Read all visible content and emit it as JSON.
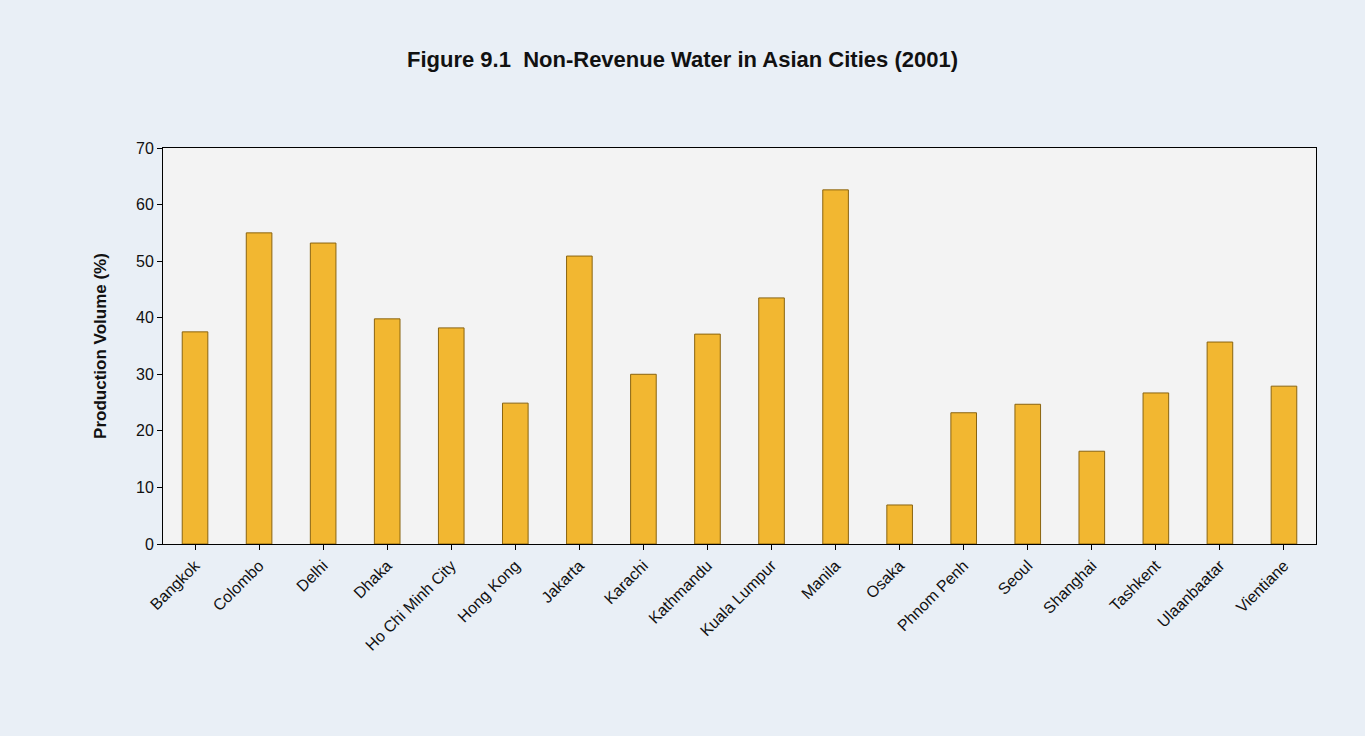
{
  "chart_data": {
    "type": "bar",
    "title": "Figure 9.1  Non-Revenue Water in Asian Cities (2001)",
    "y_label": "Production Volume (%)",
    "categories": [
      "Bangkok",
      "Colombo",
      "Delhi",
      "Dhaka",
      "Ho Chi Minh City",
      "Hong Kong",
      "Jakarta",
      "Karachi",
      "Kathmandu",
      "Kuala Lumpur",
      "Manila",
      "Osaka",
      "Phnom Penh",
      "Seoul",
      "Shanghai",
      "Tashkent",
      "Ulaanbaatar",
      "Vientiane"
    ],
    "values": [
      37.5,
      55.0,
      53.2,
      39.8,
      38.2,
      24.9,
      50.9,
      30.0,
      37.1,
      43.5,
      62.6,
      6.9,
      23.2,
      24.7,
      16.4,
      26.7,
      35.7,
      27.9
    ],
    "color": "#f2b731",
    "ylim": [
      0,
      70
    ],
    "yticks": [
      0,
      10,
      20,
      30,
      40,
      50,
      60,
      70
    ],
    "grid": false
  }
}
